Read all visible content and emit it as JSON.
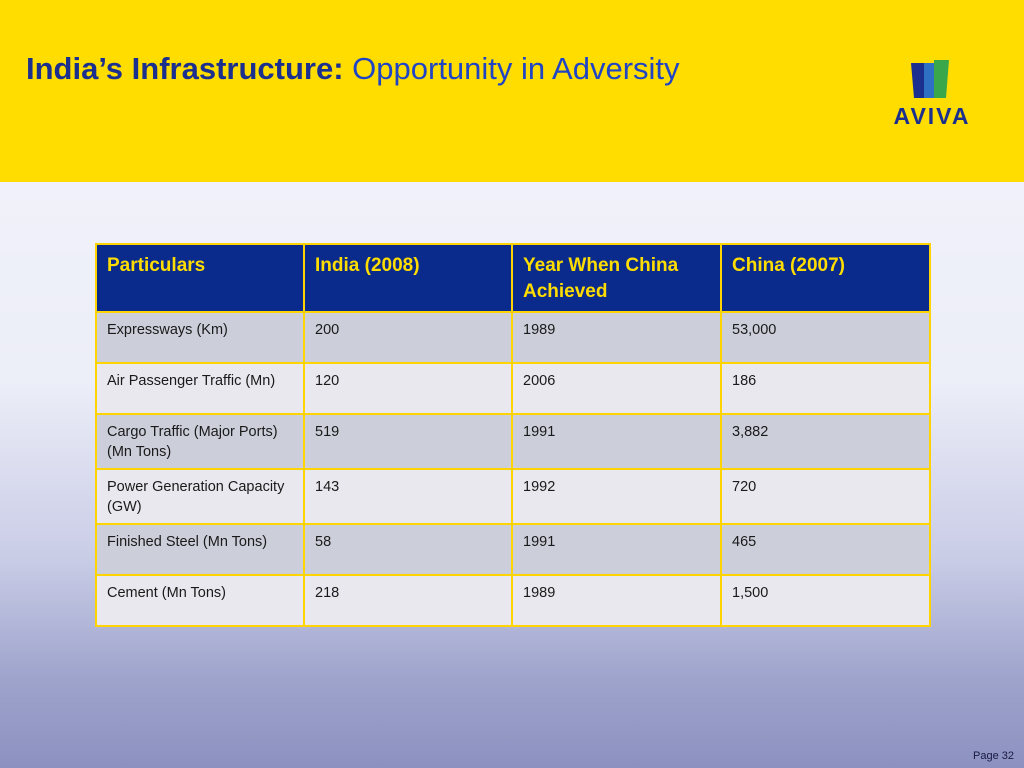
{
  "slide": {
    "title_bold": "India’s Infrastructure:",
    "title_light": "Opportunity in Adversity",
    "logo_text": "AVIVA",
    "page_label": "Page 32"
  },
  "colors": {
    "header_bg": "#ffdd00",
    "table_header_bg": "#0a2a8c",
    "table_header_text": "#ffdd00",
    "title_dark": "#1b2f8e",
    "title_light": "#1f45c6"
  },
  "table": {
    "headers": [
      "Particulars",
      "India (2008)",
      "Year When China Achieved",
      "China (2007)"
    ],
    "rows": [
      [
        "Expressways (Km)",
        "200",
        "1989",
        "53,000"
      ],
      [
        "Air Passenger Traffic (Mn)",
        "120",
        "2006",
        "186"
      ],
      [
        "Cargo Traffic (Major Ports) (Mn Tons)",
        "519",
        "1991",
        "3,882"
      ],
      [
        "Power Generation Capacity (GW)",
        "143",
        "1992",
        "720"
      ],
      [
        "Finished Steel (Mn Tons)",
        "58",
        "1991",
        "465"
      ],
      [
        "Cement (Mn Tons)",
        "218",
        "1989",
        "1,500"
      ]
    ]
  }
}
